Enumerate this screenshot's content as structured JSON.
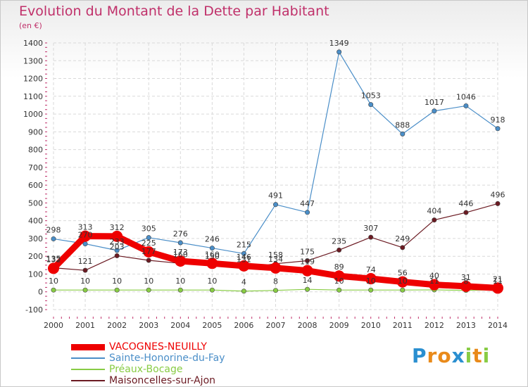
{
  "title": "Evolution du Montant de la Dette par Habitant",
  "unit_label": "(en €)",
  "logo_text": "Proxiti",
  "colors": {
    "title": "#c0306a",
    "axis_text": "#333333",
    "grid": "#d9d9d9",
    "tick_red": "#c0306a"
  },
  "chart_data": {
    "type": "line",
    "title": "Evolution du Montant de la Dette par Habitant",
    "ylabel": "(en €)",
    "xlabel": "",
    "x": [
      "2000",
      "2001",
      "2002",
      "2003",
      "2004",
      "2005",
      "2006",
      "2007",
      "2008",
      "2009",
      "2010",
      "2011",
      "2012",
      "2013",
      "2014"
    ],
    "ylim": [
      -100,
      1400
    ],
    "yticks": [
      -100,
      0,
      100,
      200,
      300,
      400,
      500,
      600,
      700,
      800,
      900,
      1000,
      1100,
      1200,
      1300,
      1400
    ],
    "grid": true,
    "legend_position": "bottom-left",
    "series": [
      {
        "name": "VACOGNES-NEUILLY",
        "color": "#ee0000",
        "values": [
          132,
          313,
          312,
          225,
          173,
          160,
          146,
          134,
          119,
          89,
          74,
          56,
          40,
          31,
          21
        ]
      },
      {
        "name": "Sainte-Honorine-du-Fay",
        "color": "#4a8ec8",
        "values": [
          298,
          270,
          233,
          305,
          276,
          246,
          215,
          491,
          447,
          1349,
          1053,
          888,
          1017,
          1046,
          918
        ]
      },
      {
        "name": "Préaux-Bocage",
        "color": "#88cc44",
        "values": [
          10,
          10,
          10,
          10,
          10,
          10,
          4,
          8,
          14,
          10,
          10,
          10,
          11,
          8,
          11
        ]
      },
      {
        "name": "Maisoncelles-sur-Ajon",
        "color": "#6b1a22",
        "values": [
          135,
          121,
          203,
          177,
          160,
          150,
          131,
          158,
          175,
          235,
          307,
          249,
          404,
          446,
          496
        ]
      }
    ]
  }
}
